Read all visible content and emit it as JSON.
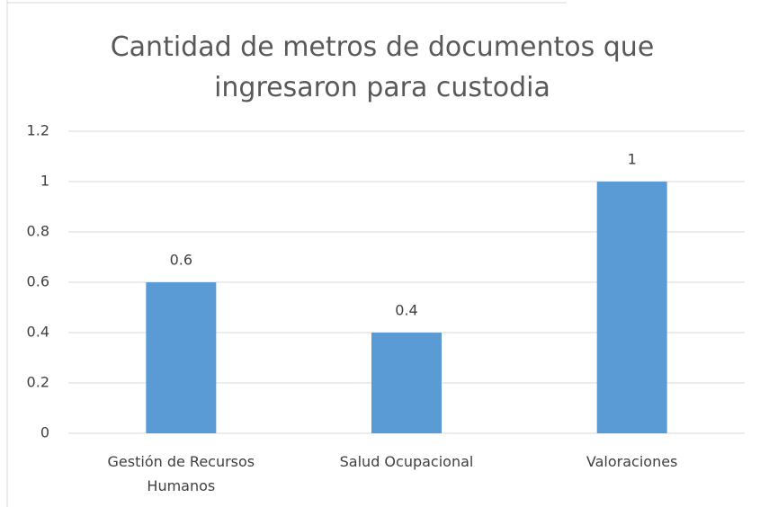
{
  "chart_data": {
    "type": "bar",
    "title": "Cantidad de metros de documentos que ingresaron para custodia",
    "categories": [
      "Gestión de Recursos Humanos",
      "Salud Ocupacional",
      "Valoraciones"
    ],
    "values": [
      0.6,
      0.4,
      1
    ],
    "color": "#5b9bd5",
    "ylim": [
      0,
      1.2
    ],
    "yticks": [
      0,
      0.2,
      0.4,
      0.6,
      0.8,
      1,
      1.2
    ],
    "grid": true
  }
}
